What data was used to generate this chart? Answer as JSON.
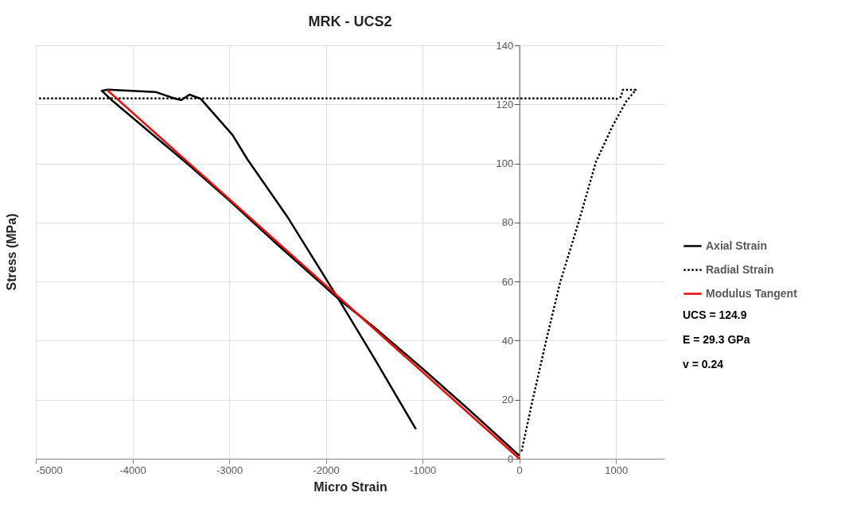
{
  "chart_data": {
    "type": "line",
    "title": "MRK - UCS2",
    "xlabel": "Micro Strain",
    "ylabel": "Stress (MPa)",
    "xlim": [
      -5000,
      1500
    ],
    "ylim": [
      0,
      140
    ],
    "xticks": [
      -5000,
      -4000,
      -3000,
      -2000,
      -1000,
      0,
      1000
    ],
    "yticks": [
      0,
      20,
      40,
      60,
      80,
      100,
      120,
      140
    ],
    "grid": true,
    "legend": "right",
    "marker": "none",
    "series": [
      {
        "name": "Axial Strain",
        "color": "#000000",
        "line_style": "solid",
        "x": [
          0,
          -500,
          -1000,
          -1500,
          -1866,
          -2500,
          -3000,
          -3400,
          -3600,
          -3707,
          -4000,
          -4200,
          -4318,
          -4257,
          -3762,
          -3556,
          -3493,
          -3411,
          -3295,
          -2965,
          -2814,
          -2400,
          -1866,
          -1500,
          -1069
        ],
        "values": [
          1.0,
          16,
          30.5,
          44.5,
          54,
          72.5,
          87.5,
          99,
          104.5,
          107.4,
          115.5,
          121,
          124.6,
          125.0,
          124.2,
          121.9,
          121.5,
          123.3,
          121.9,
          109.6,
          101.5,
          82,
          53.9,
          34,
          10
        ]
      },
      {
        "name": "Radial Strain",
        "color": "#000000",
        "line_style": "dotted",
        "x": [
          23,
          137,
          279,
          422,
          621,
          792,
          963,
          1105,
          1205,
          1070,
          1050,
          1000,
          980,
          -4980
        ],
        "values": [
          2.5,
          19.8,
          40.2,
          59.7,
          81,
          100.5,
          112.6,
          121.0,
          124.9,
          124.9,
          122.5,
          121.8,
          122.0,
          122.0
        ]
      },
      {
        "name": "Modulus Tangent",
        "color": "#ff0000",
        "line_style": "solid",
        "x": [
          0,
          -4263
        ],
        "values": [
          0,
          124.9
        ]
      }
    ],
    "annotations": [
      "UCS = 124.9",
      "E = 29.3 GPa",
      "v = 0.24"
    ]
  }
}
